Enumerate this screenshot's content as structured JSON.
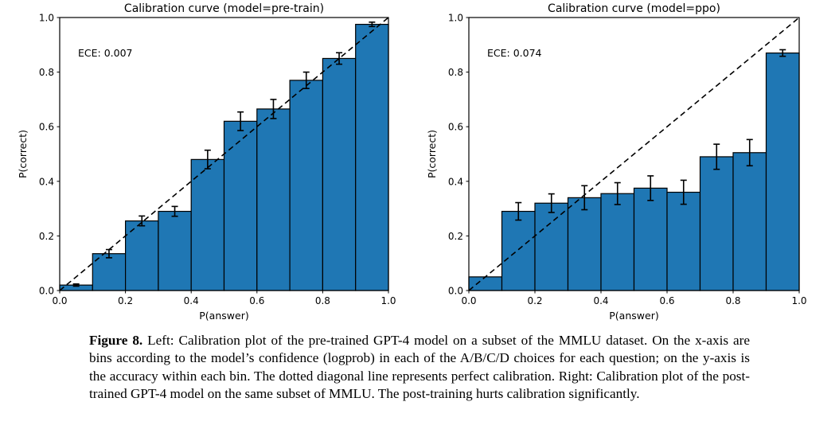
{
  "figure": {
    "caption_label": "Figure 8.",
    "caption_text": " Left: Calibration plot of the pre-trained GPT-4 model on a subset of the MMLU dataset. On the x-axis are bins according to the model’s confidence (logprob) in each of the A/B/C/D choices for each question; on the y-axis is the accuracy within each bin. The dotted diagonal line represents perfect calibration. Right: Calibration plot of the post-trained GPT-4 model on the same subset of MMLU. The post-training hurts calibration significantly."
  },
  "chart_data": [
    {
      "type": "bar",
      "model": "pre-train",
      "title": "Calibration curve (model=pre-train)",
      "annotation": "ECE: 0.007",
      "xlabel": "P(answer)",
      "ylabel": "P(correct)",
      "xlim": [
        0,
        1
      ],
      "ylim": [
        0,
        1
      ],
      "bin_width": 0.1,
      "xticks": [
        "0.0",
        "0.2",
        "0.4",
        "0.6",
        "0.8",
        "1.0"
      ],
      "yticks": [
        "0.0",
        "0.2",
        "0.4",
        "0.6",
        "0.8",
        "1.0"
      ],
      "bin_starts": [
        0.0,
        0.1,
        0.2,
        0.3,
        0.4,
        0.5,
        0.6,
        0.7,
        0.8,
        0.9
      ],
      "values": [
        0.02,
        0.135,
        0.255,
        0.29,
        0.48,
        0.62,
        0.665,
        0.77,
        0.85,
        0.975
      ],
      "errors": [
        0.004,
        0.015,
        0.018,
        0.018,
        0.034,
        0.034,
        0.035,
        0.03,
        0.021,
        0.008
      ],
      "bar_color": "#1f77b4",
      "edge_color": "#000000",
      "diagonal_line": true,
      "grid": false,
      "legend": "none"
    },
    {
      "type": "bar",
      "model": "ppo",
      "title": "Calibration curve (model=ppo)",
      "annotation": "ECE: 0.074",
      "xlabel": "P(answer)",
      "ylabel": "P(correct)",
      "xlim": [
        0,
        1
      ],
      "ylim": [
        0,
        1
      ],
      "bin_width": 0.1,
      "xticks": [
        "0.0",
        "0.2",
        "0.4",
        "0.6",
        "0.8",
        "1.0"
      ],
      "yticks": [
        "0.0",
        "0.2",
        "0.4",
        "0.6",
        "0.8",
        "1.0"
      ],
      "bin_starts": [
        0.0,
        0.1,
        0.2,
        0.3,
        0.4,
        0.5,
        0.6,
        0.7,
        0.8,
        0.9
      ],
      "values": [
        0.05,
        0.29,
        0.32,
        0.34,
        0.355,
        0.375,
        0.36,
        0.49,
        0.505,
        0.87
      ],
      "errors": [
        0,
        0.032,
        0.034,
        0.044,
        0.04,
        0.045,
        0.044,
        0.046,
        0.048,
        0.012
      ],
      "bar_color": "#1f77b4",
      "edge_color": "#000000",
      "diagonal_line": true,
      "grid": false,
      "legend": "none"
    }
  ]
}
